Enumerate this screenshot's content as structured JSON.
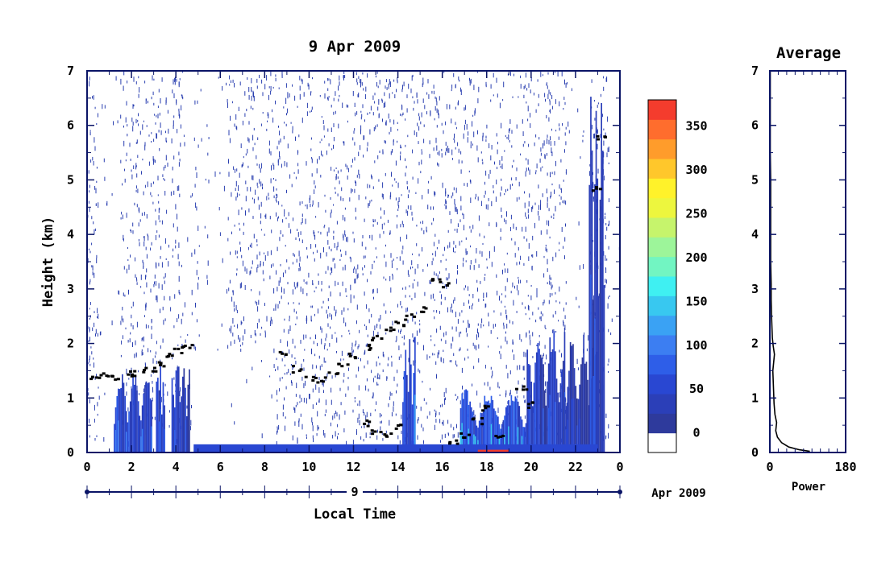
{
  "chart_data": [
    {
      "type": "heatmap",
      "title": "9 Apr 2009",
      "ylabel": "Height (km)",
      "xlabel": "Local Time",
      "date_axis": {
        "day_label": "9",
        "month_label": "Apr 2009"
      },
      "x_tick_labels": [
        "0",
        "2",
        "4",
        "6",
        "8",
        "10",
        "12",
        "14",
        "16",
        "18",
        "20",
        "22",
        "0"
      ],
      "y_tick_labels": [
        "0",
        "1",
        "2",
        "3",
        "4",
        "5",
        "6",
        "7"
      ],
      "xlim": [
        0,
        24
      ],
      "ylim": [
        0,
        7
      ],
      "colorbar": {
        "tick_labels": [
          "350",
          "300",
          "250",
          "200",
          "150",
          "100",
          "50",
          "0"
        ],
        "range": [
          0,
          380
        ],
        "colors": [
          "#ffffff",
          "#2e3a9c",
          "#2b3fb8",
          "#2947d2",
          "#2e5ee8",
          "#3c7ef2",
          "#3aa2f4",
          "#38c8f0",
          "#3ff0f2",
          "#72f5c2",
          "#9df59a",
          "#c6f46c",
          "#edf63e",
          "#fff22a",
          "#ffc72b",
          "#ff9c2b",
          "#ff6d2d",
          "#f43c2d"
        ]
      },
      "noise_color": "#2a3fb0",
      "cloud_boundaries_km": [
        {
          "t": 0.3,
          "h": 1.4
        },
        {
          "t": 0.8,
          "h": 1.43
        },
        {
          "t": 1.3,
          "h": 1.42
        },
        {
          "t": 1.8,
          "h": 1.45
        },
        {
          "t": 2.3,
          "h": 1.48
        },
        {
          "t": 2.8,
          "h": 1.55
        },
        {
          "t": 3.3,
          "h": 1.65
        },
        {
          "t": 3.7,
          "h": 1.8
        },
        {
          "t": 4.1,
          "h": 1.9
        },
        {
          "t": 4.5,
          "h": 2.0
        },
        {
          "t": 8.8,
          "h": 1.85
        },
        {
          "t": 9.4,
          "h": 1.55
        },
        {
          "t": 10.0,
          "h": 1.4
        },
        {
          "t": 10.5,
          "h": 1.35
        },
        {
          "t": 11.0,
          "h": 1.45
        },
        {
          "t": 11.5,
          "h": 1.6
        },
        {
          "t": 12.0,
          "h": 1.8
        },
        {
          "t": 12.5,
          "h": 1.95
        },
        {
          "t": 13.0,
          "h": 2.1
        },
        {
          "t": 13.5,
          "h": 2.25
        },
        {
          "t": 14.0,
          "h": 2.4
        },
        {
          "t": 14.5,
          "h": 2.5
        },
        {
          "t": 15.0,
          "h": 2.65
        },
        {
          "t": 15.7,
          "h": 3.2
        },
        {
          "t": 16.0,
          "h": 3.1
        },
        {
          "t": 12.5,
          "h": 0.55
        },
        {
          "t": 13.0,
          "h": 0.4
        },
        {
          "t": 13.5,
          "h": 0.35
        },
        {
          "t": 14.0,
          "h": 0.5
        },
        {
          "t": 16.5,
          "h": 0.2
        },
        {
          "t": 17.0,
          "h": 0.35
        },
        {
          "t": 17.5,
          "h": 0.6
        },
        {
          "t": 18.0,
          "h": 0.85
        },
        {
          "t": 18.5,
          "h": 0.3
        },
        {
          "t": 19.5,
          "h": 1.2
        },
        {
          "t": 20.0,
          "h": 0.9
        },
        {
          "t": 22.9,
          "h": 4.85
        },
        {
          "t": 23.1,
          "h": 5.8
        }
      ],
      "echo_columns": [
        {
          "t0": 1.2,
          "t1": 2.9,
          "top_km": 1.5,
          "peak": 120
        },
        {
          "t0": 3.1,
          "t1": 3.5,
          "top_km": 1.7,
          "peak": 100
        },
        {
          "t0": 3.8,
          "t1": 4.6,
          "top_km": 1.9,
          "peak": 90
        },
        {
          "t0": 14.2,
          "t1": 14.8,
          "top_km": 2.2,
          "peak": 130
        },
        {
          "t0": 16.8,
          "t1": 19.8,
          "top_km": 1.2,
          "peak": 150
        },
        {
          "t0": 19.8,
          "t1": 21.5,
          "top_km": 2.4,
          "peak": 90
        },
        {
          "t0": 21.5,
          "t1": 23.0,
          "top_km": 2.2,
          "peak": 70
        },
        {
          "t0": 22.6,
          "t1": 23.3,
          "top_km": 6.8,
          "peak": 80
        }
      ],
      "surface_layer": {
        "t0": 4.8,
        "t1": 23.0,
        "top_km": 0.15,
        "peak": 60
      }
    },
    {
      "type": "line",
      "title": "Average",
      "xlabel": "Power",
      "x_tick_labels": [
        "0",
        "180"
      ],
      "y_tick_labels": [
        "0",
        "1",
        "2",
        "3",
        "4",
        "5",
        "6",
        "7"
      ],
      "xlim": [
        0,
        180
      ],
      "ylim": [
        0,
        7
      ],
      "series": [
        {
          "x": [
            95,
            70,
            45,
            28,
            18,
            14,
            16,
            12,
            10,
            9,
            8,
            7,
            9,
            11,
            8,
            6,
            5,
            4,
            3,
            3,
            2,
            2,
            2,
            2,
            1,
            1,
            1,
            1,
            1,
            1
          ],
          "y": [
            0.02,
            0.05,
            0.1,
            0.18,
            0.28,
            0.4,
            0.55,
            0.7,
            0.9,
            1.1,
            1.3,
            1.5,
            1.65,
            1.8,
            1.95,
            2.1,
            2.3,
            2.5,
            2.8,
            3.1,
            3.5,
            4.0,
            4.5,
            5.0,
            5.5,
            6.0,
            6.4,
            6.7,
            6.9,
            7.0
          ]
        }
      ]
    }
  ]
}
